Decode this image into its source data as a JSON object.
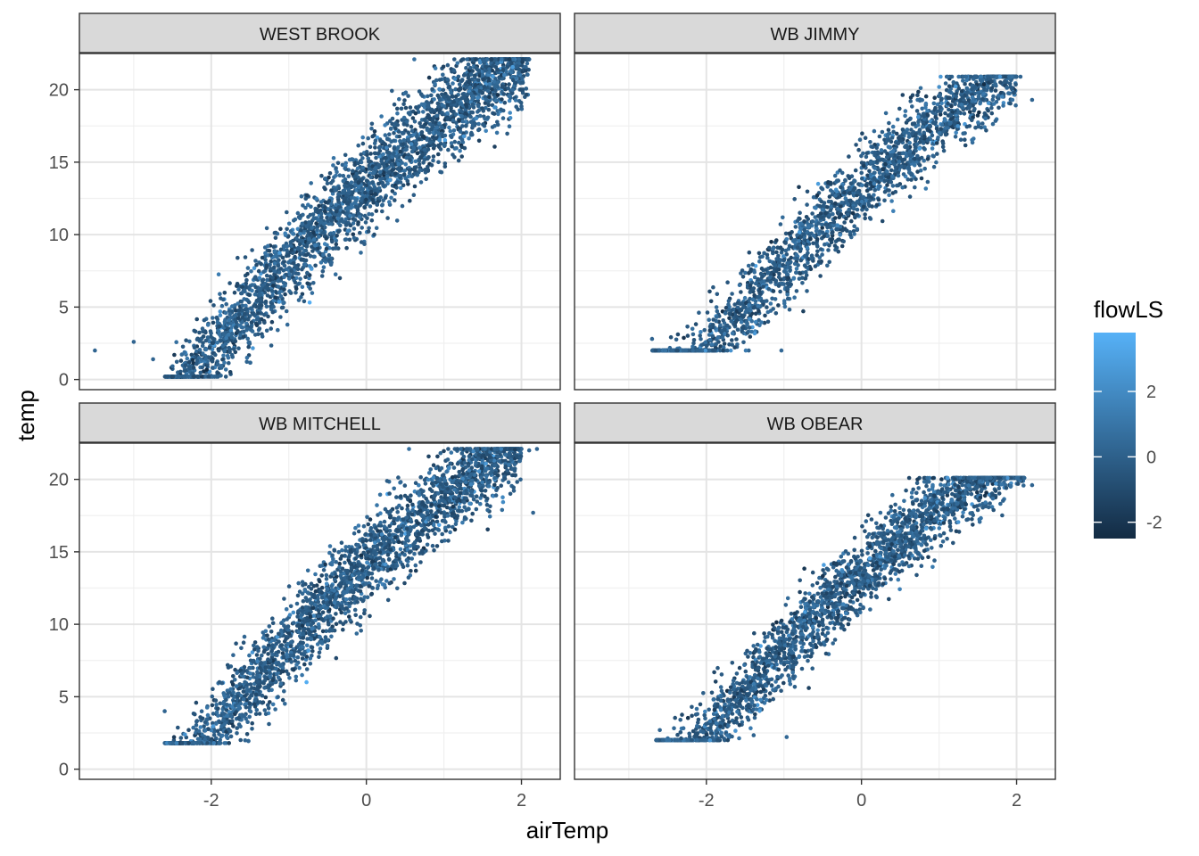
{
  "chart_data": {
    "type": "scatter",
    "facet_layout": "2x2 grid",
    "xlabel": "airTemp",
    "ylabel": "temp",
    "x_ticks": [
      -2,
      0,
      2
    ],
    "y_ticks": [
      0,
      5,
      10,
      15,
      20
    ],
    "xlim": [
      -3.7,
      2.5
    ],
    "ylim": [
      -0.7,
      22.5
    ],
    "grid": true,
    "legend": {
      "title": "flowLS",
      "type": "continuous colorbar",
      "placement": "right",
      "ticks": [
        2,
        0,
        -2
      ],
      "range": [
        -2.5,
        3.8
      ],
      "colors": {
        "low": "#132B43",
        "high": "#56B1F7"
      }
    },
    "panels": [
      {
        "title": "WEST BROOK",
        "slope": 4.65,
        "intercept": 13.2,
        "noise": 1.55,
        "x_range": [
          -2.6,
          2.1
        ],
        "y_range": [
          0.2,
          22.1
        ],
        "points_shown": 3000,
        "outliers": [
          [
            -3.5,
            2.0
          ],
          [
            -3.0,
            2.6
          ],
          [
            -2.3,
            0.2
          ],
          [
            -2.75,
            1.4
          ]
        ]
      },
      {
        "title": "WB JIMMY",
        "slope": 4.55,
        "intercept": 13.0,
        "noise": 1.35,
        "x_range": [
          -2.7,
          2.0
        ],
        "y_range": [
          2.0,
          20.9
        ],
        "points_shown": 2200,
        "outliers": [
          [
            2.2,
            19.3
          ],
          [
            2.05,
            20.9
          ],
          [
            -2.7,
            2.8
          ]
        ]
      },
      {
        "title": "WB MITCHELL",
        "slope": 4.6,
        "intercept": 13.8,
        "noise": 1.45,
        "x_range": [
          -2.6,
          2.0
        ],
        "y_range": [
          1.8,
          22.1
        ],
        "points_shown": 2600,
        "outliers": [
          [
            2.2,
            22.1
          ],
          [
            2.1,
            22.0
          ],
          [
            2.15,
            17.7
          ],
          [
            -2.6,
            4.0
          ]
        ]
      },
      {
        "title": "WB OBEAR",
        "slope": 4.5,
        "intercept": 13.3,
        "noise": 1.3,
        "x_range": [
          -2.65,
          2.1
        ],
        "y_range": [
          2.0,
          20.1
        ],
        "points_shown": 2600,
        "outliers": [
          [
            2.2,
            19.6
          ],
          [
            2.1,
            20.1
          ],
          [
            -2.6,
            2.7
          ]
        ]
      }
    ]
  }
}
